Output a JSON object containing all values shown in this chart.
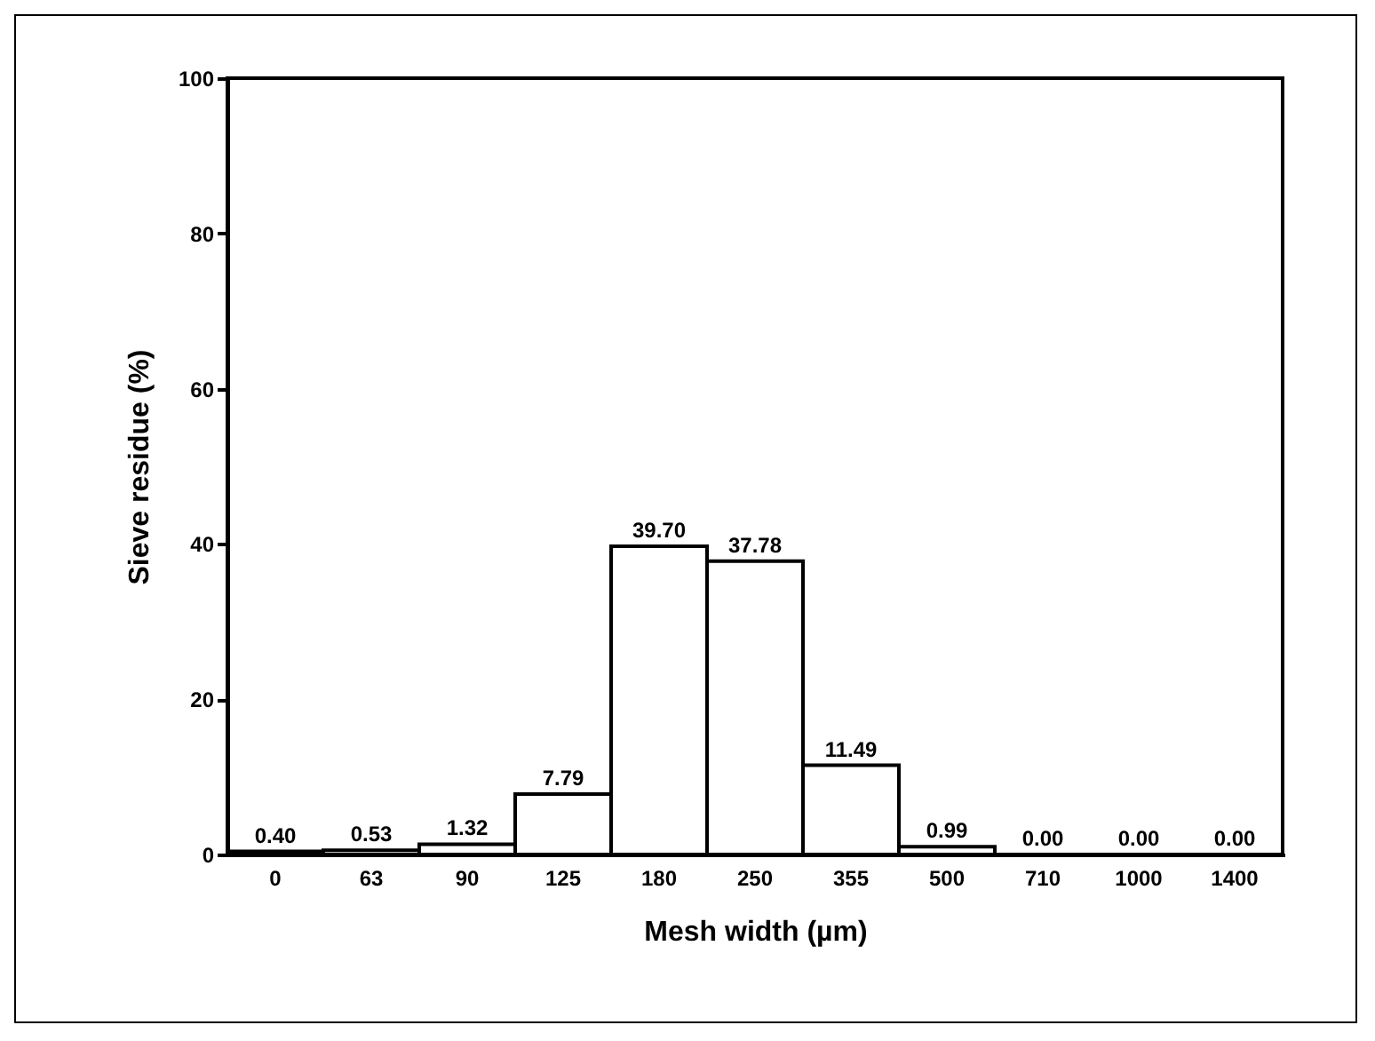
{
  "chart_data": {
    "type": "bar",
    "xlabel": "Mesh width (µm)",
    "ylabel": "Sieve residue (%)",
    "categories": [
      "0",
      "63",
      "90",
      "125",
      "180",
      "250",
      "355",
      "500",
      "710",
      "1000",
      "1400"
    ],
    "values": [
      0.4,
      0.53,
      1.32,
      7.79,
      39.7,
      37.78,
      11.49,
      0.99,
      0.0,
      0.0,
      0.0
    ],
    "value_labels": [
      "0.40",
      "0.53",
      "1.32",
      "7.79",
      "39.70",
      "37.78",
      "11.49",
      "0.99",
      "0.00",
      "0.00",
      "0.00"
    ],
    "color": "#ffffff",
    "ylim": [
      0,
      100
    ],
    "yticks": [
      0,
      20,
      40,
      60,
      80,
      100
    ],
    "grid": false
  }
}
